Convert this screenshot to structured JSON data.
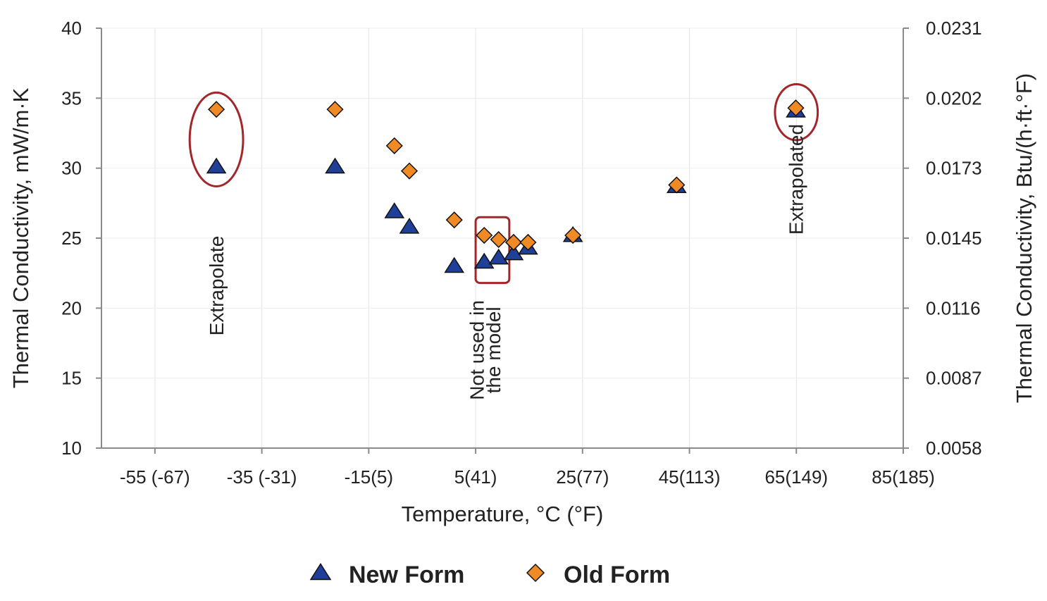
{
  "chart_data": {
    "type": "scatter",
    "xlabel": "Temperature, °C (°F)",
    "ylabel": "Thermal Conductivity, mW/m·K",
    "y2label": "Thermal Conductivity, Btu/(h·ft·°F)",
    "xlim": [
      -65,
      85
    ],
    "ylim": [
      10,
      40
    ],
    "x_ticks": [
      {
        "value": -55,
        "label": "-55 (-67)"
      },
      {
        "value": -35,
        "label": "-35 (-31)"
      },
      {
        "value": -15,
        "label": "-15(5)"
      },
      {
        "value": 5,
        "label": "5(41)"
      },
      {
        "value": 25,
        "label": "25(77)"
      },
      {
        "value": 45,
        "label": "45(113)"
      },
      {
        "value": 65,
        "label": "65(149)"
      },
      {
        "value": 85,
        "label": "85(185)"
      }
    ],
    "y_ticks": [
      {
        "value": 10,
        "label": "10"
      },
      {
        "value": 15,
        "label": "15"
      },
      {
        "value": 20,
        "label": "20"
      },
      {
        "value": 25,
        "label": "25"
      },
      {
        "value": 30,
        "label": "30"
      },
      {
        "value": 35,
        "label": "35"
      },
      {
        "value": 40,
        "label": "40"
      }
    ],
    "y2_ticks": [
      {
        "value": 10,
        "label": "0.0058"
      },
      {
        "value": 15,
        "label": "0.0087"
      },
      {
        "value": 20,
        "label": "0.0116"
      },
      {
        "value": 25,
        "label": "0.0145"
      },
      {
        "value": 30,
        "label": "0.0173"
      },
      {
        "value": 35,
        "label": "0.0202"
      },
      {
        "value": 40,
        "label": "0.0231"
      }
    ],
    "grid": true,
    "legend_position": "bottom",
    "series": [
      {
        "name": "New Form",
        "marker": "triangle",
        "color": "#1f3f99",
        "points": [
          {
            "x": -43.5,
            "y": 30.1
          },
          {
            "x": -21.3,
            "y": 30.1
          },
          {
            "x": -10.2,
            "y": 26.9
          },
          {
            "x": -7.4,
            "y": 25.8
          },
          {
            "x": 1.0,
            "y": 23.0
          },
          {
            "x": 6.6,
            "y": 23.3
          },
          {
            "x": 9.3,
            "y": 23.6
          },
          {
            "x": 12.1,
            "y": 23.9
          },
          {
            "x": 14.8,
            "y": 24.3
          },
          {
            "x": 23.2,
            "y": 25.2
          },
          {
            "x": 42.6,
            "y": 28.7
          },
          {
            "x": 64.9,
            "y": 34.1
          }
        ]
      },
      {
        "name": "Old Form",
        "marker": "diamond",
        "color": "#f08a24",
        "points": [
          {
            "x": -43.5,
            "y": 34.2
          },
          {
            "x": -21.3,
            "y": 34.2
          },
          {
            "x": -10.2,
            "y": 31.6
          },
          {
            "x": -7.4,
            "y": 29.8
          },
          {
            "x": 1.0,
            "y": 26.3
          },
          {
            "x": 6.6,
            "y": 25.2
          },
          {
            "x": 9.3,
            "y": 24.9
          },
          {
            "x": 12.1,
            "y": 24.7
          },
          {
            "x": 14.8,
            "y": 24.7
          },
          {
            "x": 23.2,
            "y": 25.2
          },
          {
            "x": 42.6,
            "y": 28.8
          },
          {
            "x": 64.9,
            "y": 34.3
          }
        ]
      }
    ],
    "annotations": [
      {
        "text": "Extrapolate",
        "x": -43.5,
        "y": 21.6
      },
      {
        "text": "Not used in",
        "x": 5.2,
        "y": 17.0
      },
      {
        "text": "the model",
        "x": 8.3,
        "y": 17.0
      },
      {
        "text": "Extrapolated",
        "x": 64.9,
        "y": 29.2
      }
    ],
    "highlights": [
      {
        "shape": "ellipse",
        "x_range": [
          -48.5,
          -38.5
        ],
        "y_range": [
          28.7,
          35.4
        ]
      },
      {
        "shape": "rect",
        "x_range": [
          5.0,
          11.3
        ],
        "y_range": [
          21.8,
          26.5
        ]
      },
      {
        "shape": "ellipse",
        "x_range": [
          61.0,
          69.0
        ],
        "y_range": [
          32.0,
          36.0
        ]
      }
    ],
    "highlight_color": "#a3262b"
  }
}
